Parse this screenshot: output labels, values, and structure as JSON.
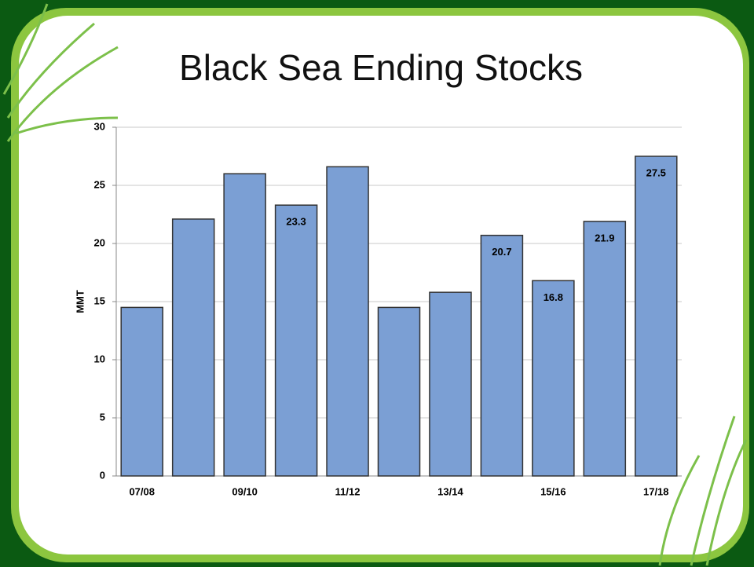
{
  "chart_data": {
    "type": "bar",
    "title": "Black Sea Ending Stocks",
    "ylabel": "MMT",
    "categories": [
      "07/08",
      null,
      "09/10",
      null,
      "11/12",
      null,
      "13/14",
      null,
      "15/16",
      null,
      "17/18"
    ],
    "values": [
      14.5,
      22.1,
      26.0,
      23.3,
      26.6,
      14.5,
      15.8,
      20.7,
      16.8,
      21.9,
      27.5
    ],
    "value_labels": [
      null,
      null,
      null,
      "23.3",
      null,
      null,
      null,
      "20.7",
      "16.8",
      "21.9",
      "27.5"
    ],
    "color": "#7b9fd4",
    "ylim": [
      0,
      30
    ],
    "yticks": [
      0,
      5,
      10,
      15,
      20,
      25,
      30
    ],
    "grid": true
  }
}
